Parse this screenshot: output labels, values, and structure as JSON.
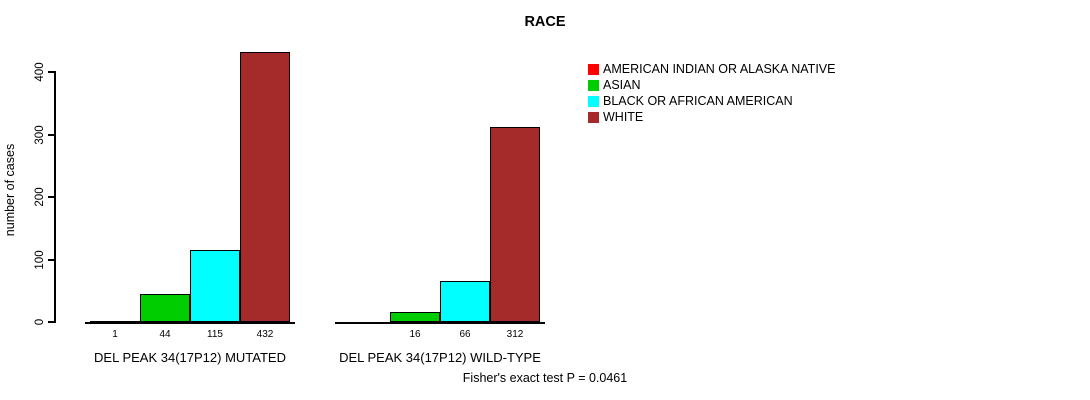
{
  "title": "RACE",
  "ylabel": "number of cases",
  "footer": "Fisher's exact test P = 0.0461",
  "legend": [
    {
      "label": "AMERICAN INDIAN OR ALASKA NATIVE",
      "color": "#FF0000"
    },
    {
      "label": "ASIAN",
      "color": "#00CD00"
    },
    {
      "label": "BLACK OR AFRICAN AMERICAN",
      "color": "#00FFFF"
    },
    {
      "label": "WHITE",
      "color": "#A52A2A"
    }
  ],
  "chart_data": {
    "type": "bar",
    "title": "RACE",
    "xlabel": "",
    "ylabel": "number of cases",
    "ylim": [
      0,
      440
    ],
    "yticks": [
      0,
      100,
      200,
      300,
      400
    ],
    "grid": false,
    "legend_position": "top-right",
    "categories": [
      "AMERICAN INDIAN OR ALASKA NATIVE",
      "ASIAN",
      "BLACK OR AFRICAN AMERICAN",
      "WHITE"
    ],
    "colors": [
      "#FF0000",
      "#00CD00",
      "#00FFFF",
      "#A52A2A"
    ],
    "groups": [
      {
        "label": "DEL PEAK 34(17P12) MUTATED",
        "values": [
          1,
          44,
          115,
          432
        ],
        "value_labels": [
          "1",
          "44",
          "115",
          "432"
        ]
      },
      {
        "label": "DEL PEAK 34(17P12) WILD-TYPE",
        "values": [
          null,
          16,
          66,
          312
        ],
        "value_labels": [
          "",
          "16",
          "66",
          "312"
        ]
      }
    ],
    "annotation": "Fisher's exact test P = 0.0461"
  }
}
